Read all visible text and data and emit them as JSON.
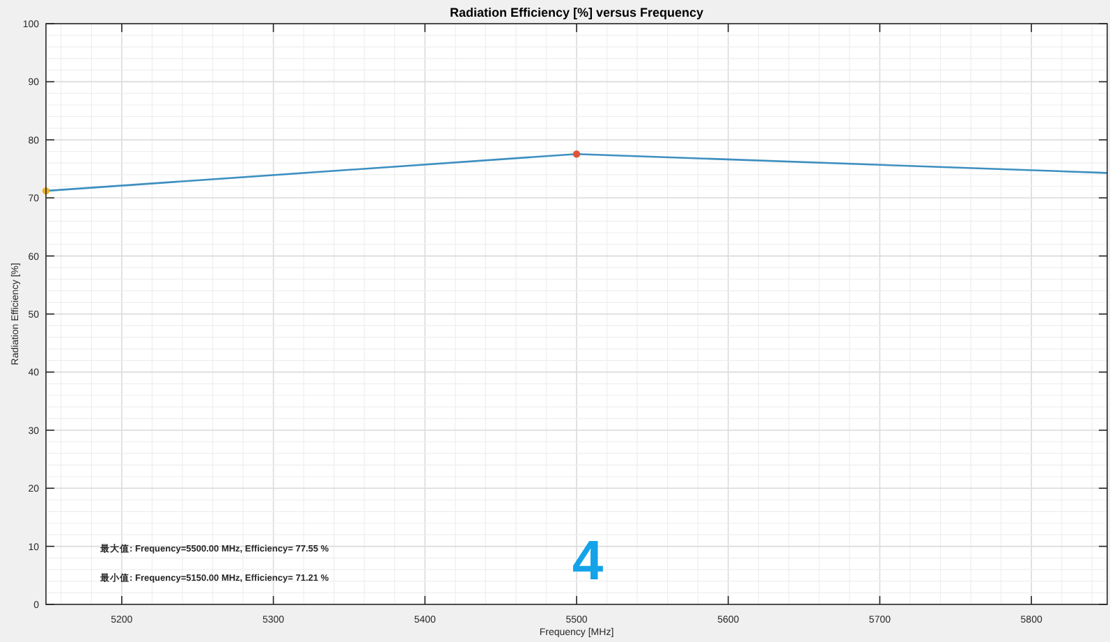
{
  "chart_data": {
    "type": "line",
    "title": "Radiation Efficiency [%] versus Frequency",
    "xlabel": "Frequency [MHz]",
    "ylabel": "Radiation Efficiency [%]",
    "xlim": [
      5150,
      5850
    ],
    "xticks": [
      5200,
      5300,
      5400,
      5500,
      5600,
      5700,
      5800
    ],
    "ylim": [
      0,
      100
    ],
    "yticks": [
      0,
      10,
      20,
      30,
      40,
      50,
      60,
      70,
      80,
      90,
      100
    ],
    "grid": true,
    "series": [
      {
        "x": [
          5150,
          5500,
          5850
        ],
        "values": [
          71.21,
          77.55,
          74.3
        ],
        "color": "#3d8fc0",
        "line_style": "solid"
      },
      {
        "type": "scatter",
        "x": [
          5500
        ],
        "values": [
          77.55
        ],
        "color": "#e0533a",
        "marker": "circle"
      },
      {
        "type": "scatter",
        "x": [
          5150
        ],
        "values": [
          71.21
        ],
        "color": "#edb120",
        "marker": "circle"
      }
    ],
    "annotations": [
      "最大值: Frequency=5500.00 MHz, Efficiency= 77.55 %",
      "最小值: Frequency=5150.00 MHz, Efficiency= 71.21 %",
      "4"
    ]
  }
}
